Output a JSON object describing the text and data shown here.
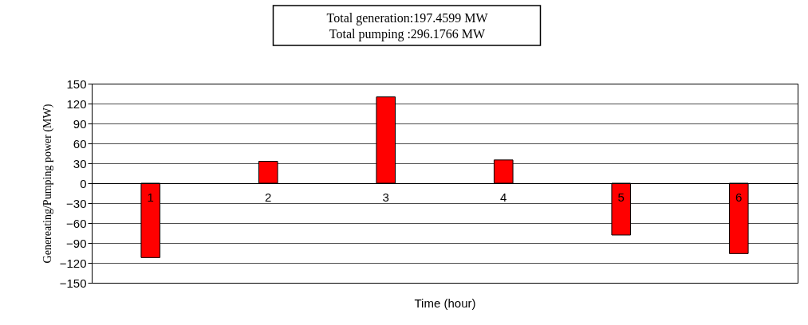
{
  "chart_data": {
    "type": "bar",
    "xlabel": "Time (hour)",
    "ylabel": "Genereating/Pumping power (MW)",
    "annotations": [
      "Total generation:197.4599  MW",
      "Total pumping :296.1766  MW"
    ],
    "categories": [
      "1",
      "2",
      "3",
      "4",
      "5",
      "6"
    ],
    "values": [
      -112,
      33,
      130,
      35,
      -78,
      -106
    ],
    "color": "#ff0000",
    "ylim": [
      -150,
      150
    ],
    "yticks": [
      -150,
      -120,
      -90,
      -60,
      -30,
      0,
      30,
      60,
      90,
      120,
      150
    ],
    "grid": "y"
  }
}
